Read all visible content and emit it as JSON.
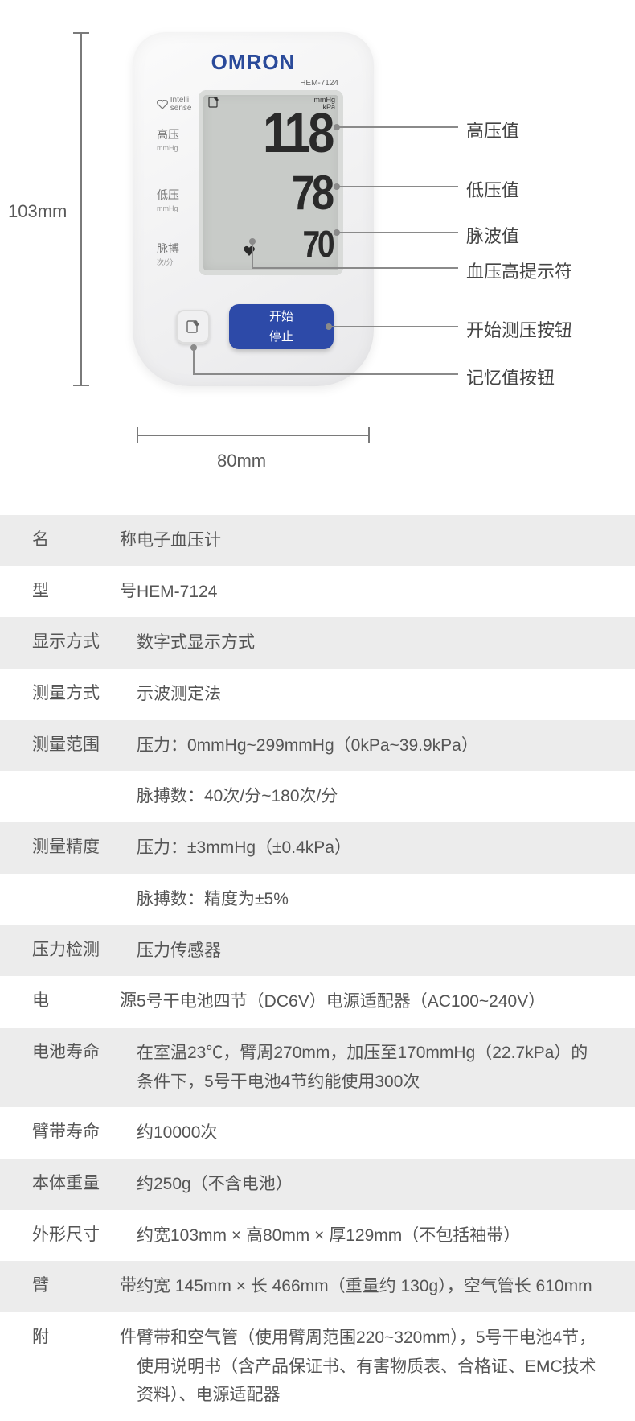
{
  "diagram": {
    "height_label": "103mm",
    "width_label": "80mm",
    "brand": "OMRON",
    "model": "HEM-7124",
    "intelli": "Intelli\nsense",
    "labels": {
      "sys": "高压",
      "sys_unit": "mmHg",
      "dia": "低压",
      "dia_unit": "mmHg",
      "pulse": "脉搏",
      "pulse_unit": "次/分"
    },
    "lcd": {
      "unit_top": "mmHg",
      "unit_bot": "kPa",
      "sys": "118",
      "dia": "78",
      "pulse": "70"
    },
    "start_btn_top": "开始",
    "start_btn_bot": "停止",
    "callouts": [
      "高压值",
      "低压值",
      "脉波值",
      "血压高提示符",
      "开始测压按钮",
      "记忆值按钮"
    ]
  },
  "spec_rows": [
    {
      "shade": true,
      "label": "名称",
      "justify": true,
      "value": "电子血压计"
    },
    {
      "shade": false,
      "label": "型号",
      "justify": true,
      "value": "HEM-7124"
    },
    {
      "shade": true,
      "label": "显示方式",
      "justify": false,
      "value": "数字式显示方式"
    },
    {
      "shade": false,
      "label": "测量方式",
      "justify": false,
      "value": "示波测定法"
    },
    {
      "shade": true,
      "label": "测量范围",
      "justify": false,
      "value": "压力：0mmHg~299mmHg（0kPa~39.9kPa）"
    },
    {
      "shade": false,
      "label": "",
      "justify": false,
      "value": "脉搏数：40次/分~180次/分"
    },
    {
      "shade": true,
      "label": "测量精度",
      "justify": false,
      "value": "压力：±3mmHg（±0.4kPa）"
    },
    {
      "shade": false,
      "label": "",
      "justify": false,
      "value": "脉搏数：精度为±5%"
    },
    {
      "shade": true,
      "label": "压力检测",
      "justify": false,
      "value": "压力传感器"
    },
    {
      "shade": false,
      "label": "电源",
      "justify": true,
      "value": "5号干电池四节（DC6V）电源适配器（AC100~240V）"
    },
    {
      "shade": true,
      "label": "电池寿命",
      "justify": false,
      "value": "在室温23℃，臂周270mm，加压至170mmHg（22.7kPa）的条件下，5号干电池4节约能使用300次"
    },
    {
      "shade": false,
      "label": "臂带寿命",
      "justify": false,
      "value": "约10000次"
    },
    {
      "shade": true,
      "label": "本体重量",
      "justify": false,
      "value": "约250g（不含电池）"
    },
    {
      "shade": false,
      "label": "外形尺寸",
      "justify": false,
      "value": "约宽103mm × 高80mm × 厚129mm（不包括袖带）"
    },
    {
      "shade": true,
      "label": "臂带",
      "justify": true,
      "value": "约宽 145mm × 长 466mm（重量约 130g），空气管长 610mm"
    },
    {
      "shade": false,
      "label": "附件",
      "justify": true,
      "value": "臂带和空气管（使用臂周范围220~320mm），5号干电池4节，使用说明书（含产品保证书、有害物质表、合格证、EMC技术资料）、电源适配器"
    }
  ],
  "colors": {
    "row_shade": "#ececec",
    "text": "#555555",
    "brand_blue": "#2a4a9a",
    "button_blue": "#2d4aa8",
    "lcd_bg": "#c8cbc8",
    "line": "#8a8a8a"
  }
}
